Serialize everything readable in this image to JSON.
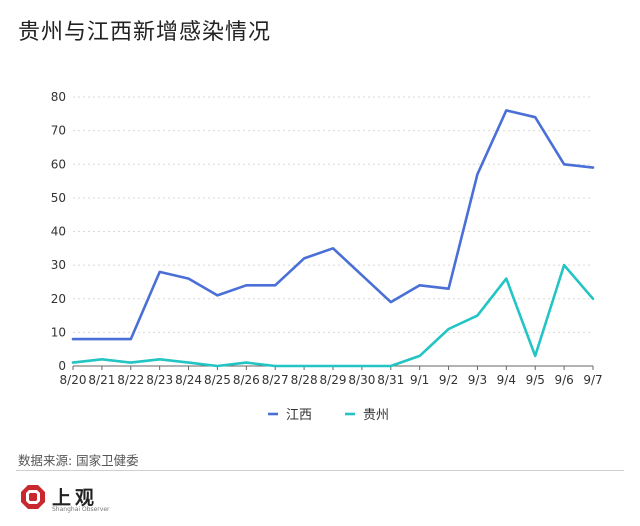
{
  "title": "贵州与江西新增感染情况",
  "source_note": "数据来源: 国家卫健委",
  "logo": {
    "name": "上观",
    "sub": "Shanghai Observer"
  },
  "colors": {
    "jiangxi": "#4a6fd6",
    "guizhou": "#22c4c4"
  },
  "chart_data": {
    "type": "line",
    "title": "贵州与江西新增感染情况",
    "xlabel": "",
    "ylabel": "",
    "categories": [
      "8/20",
      "8/21",
      "8/22",
      "8/23",
      "8/24",
      "8/25",
      "8/26",
      "8/27",
      "8/28",
      "8/29",
      "8/30",
      "8/31",
      "9/1",
      "9/2",
      "9/3",
      "9/4",
      "9/5",
      "9/6",
      "9/7"
    ],
    "ylim": [
      0,
      80
    ],
    "yticks": [
      0,
      10,
      20,
      30,
      40,
      50,
      60,
      70,
      80
    ],
    "grid": true,
    "legend_position": "bottom-center",
    "series": [
      {
        "name": "江西",
        "color": "#4a6fd6",
        "values": [
          8,
          8,
          8,
          28,
          26,
          21,
          24,
          24,
          32,
          35,
          27,
          19,
          24,
          23,
          57,
          76,
          74,
          60,
          59
        ]
      },
      {
        "name": "贵州",
        "color": "#22c4c4",
        "values": [
          1,
          2,
          1,
          2,
          1,
          0,
          1,
          0,
          0,
          0,
          0,
          0,
          3,
          11,
          15,
          26,
          3,
          30,
          20
        ]
      }
    ]
  }
}
